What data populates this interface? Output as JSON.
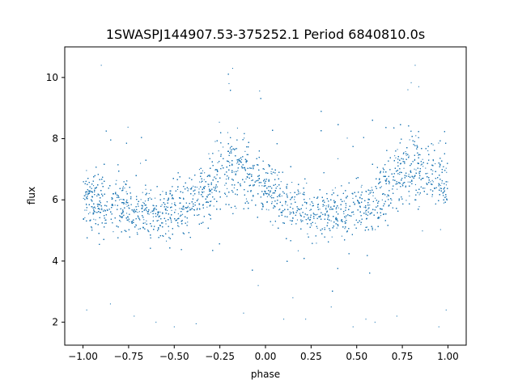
{
  "chart_data": {
    "type": "scatter",
    "title": "1SWASPJ144907.53-375252.1 Period 6840810.0s",
    "xlabel": "phase",
    "ylabel": "flux",
    "xlim": [
      -1.1,
      1.1
    ],
    "ylim": [
      1.25,
      11.0
    ],
    "x_ticks": [
      -1.0,
      -0.75,
      -0.5,
      -0.25,
      0.0,
      0.25,
      0.5,
      0.75,
      1.0
    ],
    "x_tick_labels": [
      "−1.00",
      "−0.75",
      "−0.50",
      "−0.25",
      "0.00",
      "0.25",
      "0.50",
      "0.75",
      "1.00"
    ],
    "y_ticks": [
      2,
      4,
      6,
      8,
      10
    ],
    "y_tick_labels": [
      "2",
      "4",
      "6",
      "8",
      "10"
    ],
    "grid": false,
    "marker_color": "#1f77b4",
    "series": [
      {
        "phase_profile": {
          "phase": [
            -1.0,
            -0.95,
            -0.9,
            -0.85,
            -0.8,
            -0.75,
            -0.7,
            -0.65,
            -0.6,
            -0.55,
            -0.5,
            -0.45,
            -0.4,
            -0.35,
            -0.3,
            -0.25,
            -0.2,
            -0.15,
            -0.1,
            -0.05,
            0.0,
            0.05,
            0.1,
            0.15,
            0.2,
            0.25,
            0.3,
            0.35,
            0.4,
            0.45,
            0.5,
            0.55,
            0.6,
            0.65,
            0.7,
            0.75,
            0.8,
            0.85,
            0.9,
            0.95,
            1.0
          ],
          "median_flux": [
            6.2,
            6.1,
            5.9,
            5.7,
            5.8,
            5.6,
            5.5,
            5.6,
            5.6,
            5.5,
            5.9,
            5.7,
            6.0,
            6.3,
            6.4,
            7.0,
            7.2,
            7.0,
            6.9,
            6.6,
            6.2,
            6.1,
            5.9,
            5.7,
            5.8,
            5.6,
            5.5,
            5.6,
            5.6,
            5.5,
            5.9,
            5.7,
            6.0,
            6.3,
            6.4,
            7.0,
            7.2,
            7.0,
            6.9,
            6.6,
            6.2
          ],
          "spread": [
            0.8,
            0.8,
            0.8,
            0.7,
            0.8,
            0.7,
            0.6,
            0.6,
            0.7,
            0.7,
            0.9,
            0.8,
            0.8,
            0.8,
            0.8,
            1.0,
            1.1,
            0.9,
            0.9,
            0.8,
            0.8,
            0.8,
            0.8,
            0.7,
            0.8,
            0.7,
            0.6,
            0.6,
            0.7,
            0.7,
            0.9,
            0.8,
            0.8,
            0.8,
            0.8,
            1.0,
            1.1,
            0.9,
            0.9,
            0.8,
            0.8
          ]
        },
        "outliers": [
          [
            -0.98,
            2.4
          ],
          [
            -0.85,
            2.6
          ],
          [
            -0.72,
            2.2
          ],
          [
            -0.6,
            2.0
          ],
          [
            -0.5,
            1.85
          ],
          [
            -0.38,
            1.95
          ],
          [
            -0.12,
            2.3
          ],
          [
            -0.04,
            3.2
          ],
          [
            0.1,
            2.1
          ],
          [
            0.15,
            2.8
          ],
          [
            0.22,
            2.1
          ],
          [
            0.36,
            2.5
          ],
          [
            0.48,
            1.85
          ],
          [
            0.55,
            2.1
          ],
          [
            0.6,
            2.0
          ],
          [
            0.72,
            2.2
          ],
          [
            0.95,
            1.85
          ],
          [
            0.99,
            2.4
          ],
          [
            -0.9,
            10.4
          ],
          [
            -0.18,
            10.3
          ],
          [
            -0.2,
            9.8
          ],
          [
            0.82,
            10.4
          ],
          [
            0.84,
            9.7
          ],
          [
            0.78,
            9.6
          ]
        ]
      }
    ]
  }
}
